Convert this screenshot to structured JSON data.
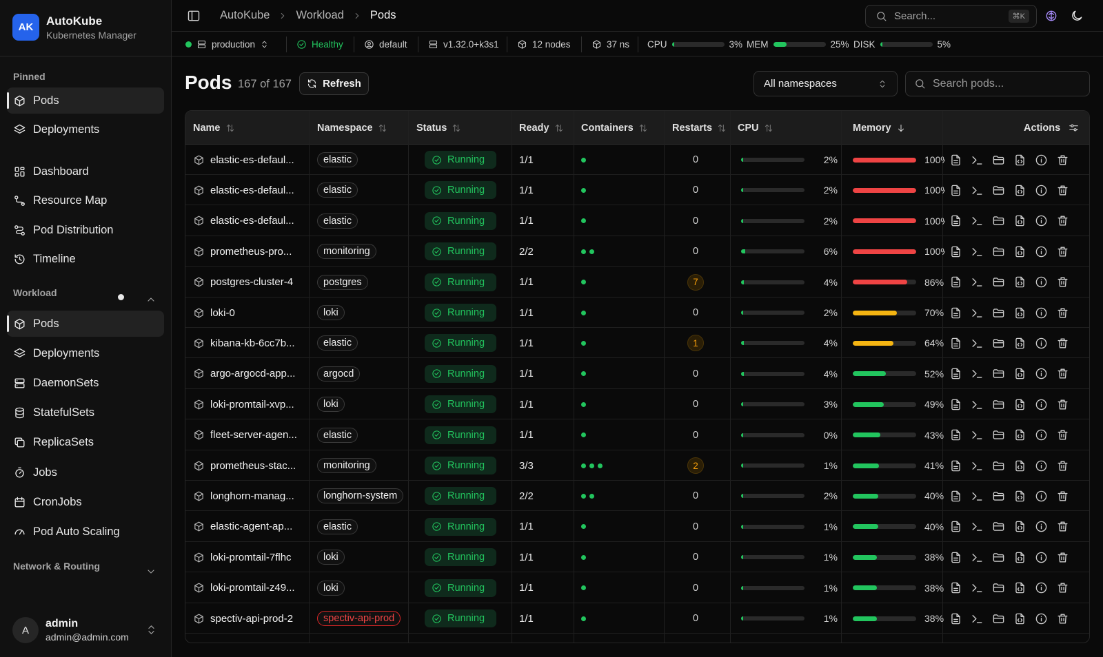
{
  "app": {
    "logo": "AK",
    "title": "AutoKube",
    "subtitle": "Kubernetes Manager"
  },
  "sidebar": {
    "pinned_label": "Pinned",
    "pinned": [
      {
        "label": "Pods",
        "icon": "box-icon"
      },
      {
        "label": "Deployments",
        "icon": "layers-icon"
      }
    ],
    "main": [
      {
        "label": "Dashboard",
        "icon": "dashboard-icon"
      },
      {
        "label": "Resource Map",
        "icon": "resource-map-icon"
      },
      {
        "label": "Pod Distribution",
        "icon": "distribution-icon"
      },
      {
        "label": "Timeline",
        "icon": "history-icon"
      }
    ],
    "workload_label": "Workload",
    "workload": [
      {
        "label": "Pods",
        "icon": "box-icon"
      },
      {
        "label": "Deployments",
        "icon": "layers-icon"
      },
      {
        "label": "DaemonSets",
        "icon": "server-icon"
      },
      {
        "label": "StatefulSets",
        "icon": "database-icon"
      },
      {
        "label": "ReplicaSets",
        "icon": "copy-icon"
      },
      {
        "label": "Jobs",
        "icon": "timer-icon"
      },
      {
        "label": "CronJobs",
        "icon": "calendar-icon"
      },
      {
        "label": "Pod Auto Scaling",
        "icon": "gauge-icon"
      }
    ],
    "network_label": "Network & Routing"
  },
  "user": {
    "initial": "A",
    "name": "admin",
    "email": "admin@admin.com"
  },
  "topbar": {
    "breadcrumbs": [
      "AutoKube",
      "Workload",
      "Pods"
    ],
    "search_placeholder": "Search...",
    "search_shortcut": "⌘K"
  },
  "statusbar": {
    "cluster": "production",
    "health": "Healthy",
    "namespace": "default",
    "version": "v1.32.0+k3s1",
    "nodes": "12 nodes",
    "namespaces": "37 ns",
    "cpu_label": "CPU",
    "cpu_value": "3%",
    "cpu_pct": 3,
    "mem_label": "MEM",
    "mem_value": "25%",
    "mem_pct": 25,
    "disk_label": "DISK",
    "disk_value": "5%",
    "disk_pct": 5,
    "accent": "#22c55e"
  },
  "page": {
    "title": "Pods",
    "count": "167 of 167",
    "refresh_label": "Refresh",
    "namespace_select": "All namespaces",
    "search_placeholder": "Search pods..."
  },
  "table": {
    "headers": {
      "name": "Name",
      "namespace": "Namespace",
      "status": "Status",
      "ready": "Ready",
      "containers": "Containers",
      "restarts": "Restarts",
      "cpu": "CPU",
      "memory": "Memory",
      "actions": "Actions"
    },
    "rows": [
      {
        "name": "elastic-es-defaul...",
        "namespace": "elastic",
        "ns_highlight": false,
        "status": "Running",
        "ready": "1/1",
        "containers": 1,
        "restarts": "0",
        "restart_warn": false,
        "cpu": "2%",
        "cpu_pct": 2,
        "memory": "100%",
        "mem_pct": 100,
        "mem_color": "#ef4444"
      },
      {
        "name": "elastic-es-defaul...",
        "namespace": "elastic",
        "ns_highlight": false,
        "status": "Running",
        "ready": "1/1",
        "containers": 1,
        "restarts": "0",
        "restart_warn": false,
        "cpu": "2%",
        "cpu_pct": 2,
        "memory": "100%",
        "mem_pct": 100,
        "mem_color": "#ef4444"
      },
      {
        "name": "elastic-es-defaul...",
        "namespace": "elastic",
        "ns_highlight": false,
        "status": "Running",
        "ready": "1/1",
        "containers": 1,
        "restarts": "0",
        "restart_warn": false,
        "cpu": "2%",
        "cpu_pct": 2,
        "memory": "100%",
        "mem_pct": 100,
        "mem_color": "#ef4444"
      },
      {
        "name": "prometheus-pro...",
        "namespace": "monitoring",
        "ns_highlight": false,
        "status": "Running",
        "ready": "2/2",
        "containers": 2,
        "restarts": "0",
        "restart_warn": false,
        "cpu": "6%",
        "cpu_pct": 6,
        "memory": "100%",
        "mem_pct": 100,
        "mem_color": "#ef4444"
      },
      {
        "name": "postgres-cluster-4",
        "namespace": "postgres",
        "ns_highlight": false,
        "status": "Running",
        "ready": "1/1",
        "containers": 1,
        "restarts": "7",
        "restart_warn": true,
        "cpu": "4%",
        "cpu_pct": 4,
        "memory": "86%",
        "mem_pct": 86,
        "mem_color": "#ef4444"
      },
      {
        "name": "loki-0",
        "namespace": "loki",
        "ns_highlight": false,
        "status": "Running",
        "ready": "1/1",
        "containers": 1,
        "restarts": "0",
        "restart_warn": false,
        "cpu": "2%",
        "cpu_pct": 2,
        "memory": "70%",
        "mem_pct": 70,
        "mem_color": "#f5b512"
      },
      {
        "name": "kibana-kb-6cc7b...",
        "namespace": "elastic",
        "ns_highlight": false,
        "status": "Running",
        "ready": "1/1",
        "containers": 1,
        "restarts": "1",
        "restart_warn": true,
        "cpu": "4%",
        "cpu_pct": 4,
        "memory": "64%",
        "mem_pct": 64,
        "mem_color": "#f5b512"
      },
      {
        "name": "argo-argocd-app...",
        "namespace": "argocd",
        "ns_highlight": false,
        "status": "Running",
        "ready": "1/1",
        "containers": 1,
        "restarts": "0",
        "restart_warn": false,
        "cpu": "4%",
        "cpu_pct": 4,
        "memory": "52%",
        "mem_pct": 52,
        "mem_color": "#22c55e"
      },
      {
        "name": "loki-promtail-xvp...",
        "namespace": "loki",
        "ns_highlight": false,
        "status": "Running",
        "ready": "1/1",
        "containers": 1,
        "restarts": "0",
        "restart_warn": false,
        "cpu": "3%",
        "cpu_pct": 3,
        "memory": "49%",
        "mem_pct": 49,
        "mem_color": "#22c55e"
      },
      {
        "name": "fleet-server-agen...",
        "namespace": "elastic",
        "ns_highlight": false,
        "status": "Running",
        "ready": "1/1",
        "containers": 1,
        "restarts": "0",
        "restart_warn": false,
        "cpu": "0%",
        "cpu_pct": 0,
        "memory": "43%",
        "mem_pct": 43,
        "mem_color": "#22c55e"
      },
      {
        "name": "prometheus-stac...",
        "namespace": "monitoring",
        "ns_highlight": false,
        "status": "Running",
        "ready": "3/3",
        "containers": 3,
        "restarts": "2",
        "restart_warn": true,
        "cpu": "1%",
        "cpu_pct": 1,
        "memory": "41%",
        "mem_pct": 41,
        "mem_color": "#22c55e"
      },
      {
        "name": "longhorn-manag...",
        "namespace": "longhorn-system",
        "ns_highlight": false,
        "status": "Running",
        "ready": "2/2",
        "containers": 2,
        "restarts": "0",
        "restart_warn": false,
        "cpu": "2%",
        "cpu_pct": 2,
        "memory": "40%",
        "mem_pct": 40,
        "mem_color": "#22c55e"
      },
      {
        "name": "elastic-agent-ap...",
        "namespace": "elastic",
        "ns_highlight": false,
        "status": "Running",
        "ready": "1/1",
        "containers": 1,
        "restarts": "0",
        "restart_warn": false,
        "cpu": "1%",
        "cpu_pct": 1,
        "memory": "40%",
        "mem_pct": 40,
        "mem_color": "#22c55e"
      },
      {
        "name": "loki-promtail-7flhc",
        "namespace": "loki",
        "ns_highlight": false,
        "status": "Running",
        "ready": "1/1",
        "containers": 1,
        "restarts": "0",
        "restart_warn": false,
        "cpu": "1%",
        "cpu_pct": 1,
        "memory": "38%",
        "mem_pct": 38,
        "mem_color": "#22c55e"
      },
      {
        "name": "loki-promtail-z49...",
        "namespace": "loki",
        "ns_highlight": false,
        "status": "Running",
        "ready": "1/1",
        "containers": 1,
        "restarts": "0",
        "restart_warn": false,
        "cpu": "1%",
        "cpu_pct": 1,
        "memory": "38%",
        "mem_pct": 38,
        "mem_color": "#22c55e"
      },
      {
        "name": "spectiv-api-prod-2",
        "namespace": "spectiv-api-prod",
        "ns_highlight": true,
        "status": "Running",
        "ready": "1/1",
        "containers": 1,
        "restarts": "0",
        "restart_warn": false,
        "cpu": "1%",
        "cpu_pct": 1,
        "memory": "38%",
        "mem_pct": 38,
        "mem_color": "#22c55e"
      }
    ]
  }
}
